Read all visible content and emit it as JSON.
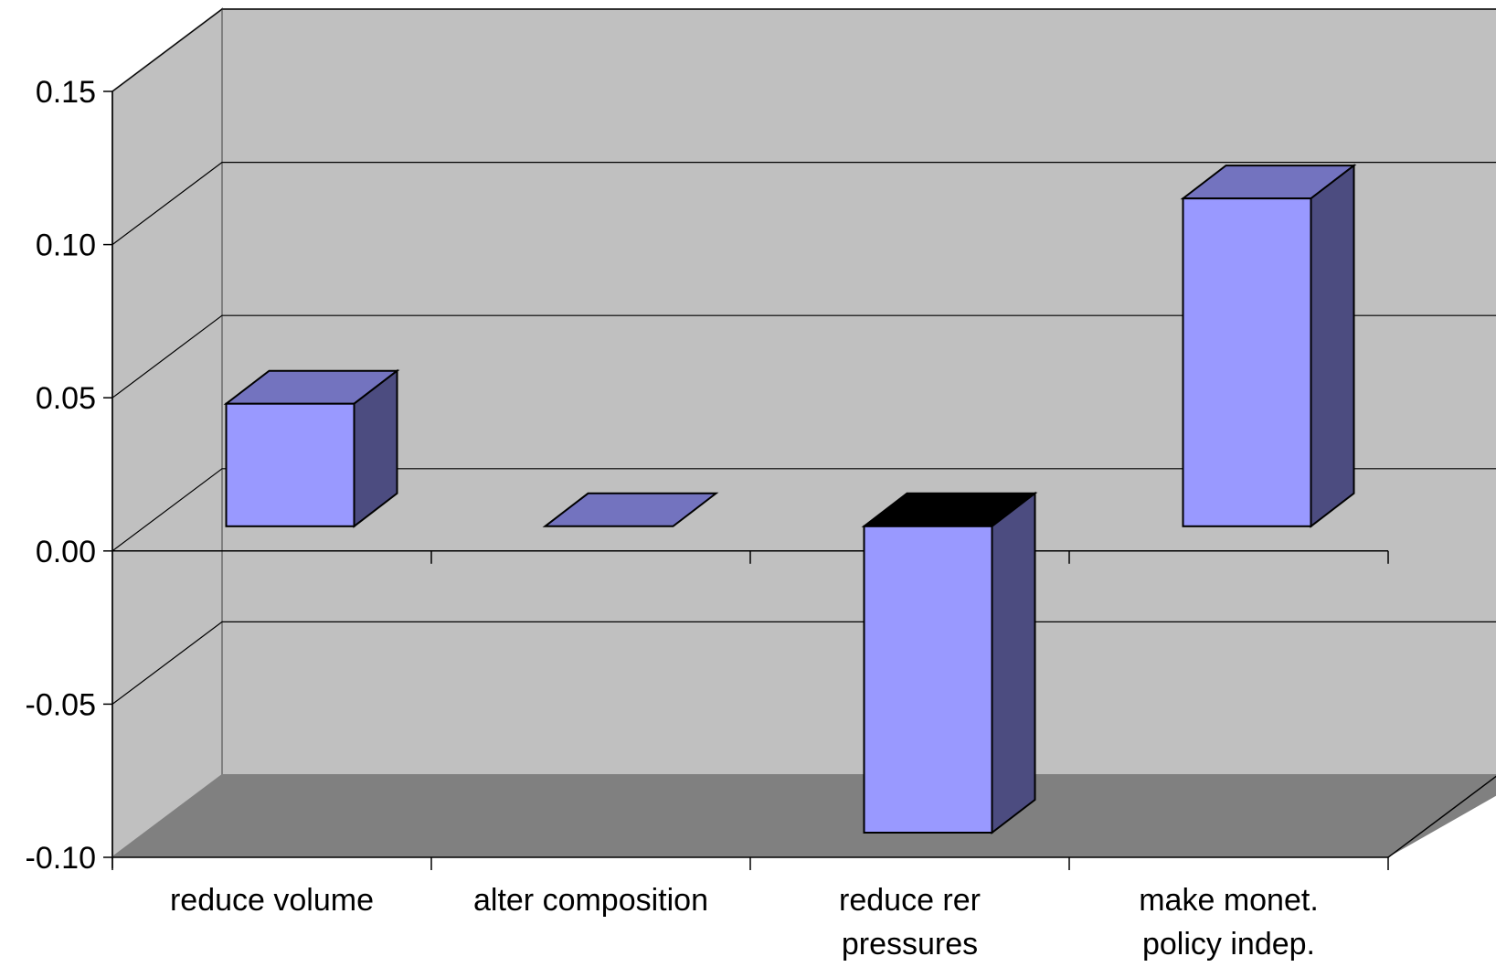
{
  "chart_data": {
    "type": "bar",
    "categories": [
      [
        "reduce volume"
      ],
      [
        "alter composition"
      ],
      [
        "reduce rer",
        "pressures"
      ],
      [
        "make monet.",
        "policy indep."
      ]
    ],
    "values": [
      0.04,
      0.0,
      -0.1,
      0.107
    ],
    "ylim": [
      -0.1,
      0.15
    ],
    "yticks": [
      "0.15",
      "0.10",
      "0.05",
      "0.00",
      "-0.05",
      "-0.10"
    ],
    "ytick_values": [
      0.15,
      0.1,
      0.05,
      0.0,
      -0.05,
      -0.1
    ],
    "grid": true,
    "view": "3d",
    "colors": {
      "bar_front": "#9999ff",
      "bar_top": "#7373bf",
      "bar_side": "#4c4c80",
      "wall": "#c0c0c0",
      "floor": "#808080"
    }
  }
}
